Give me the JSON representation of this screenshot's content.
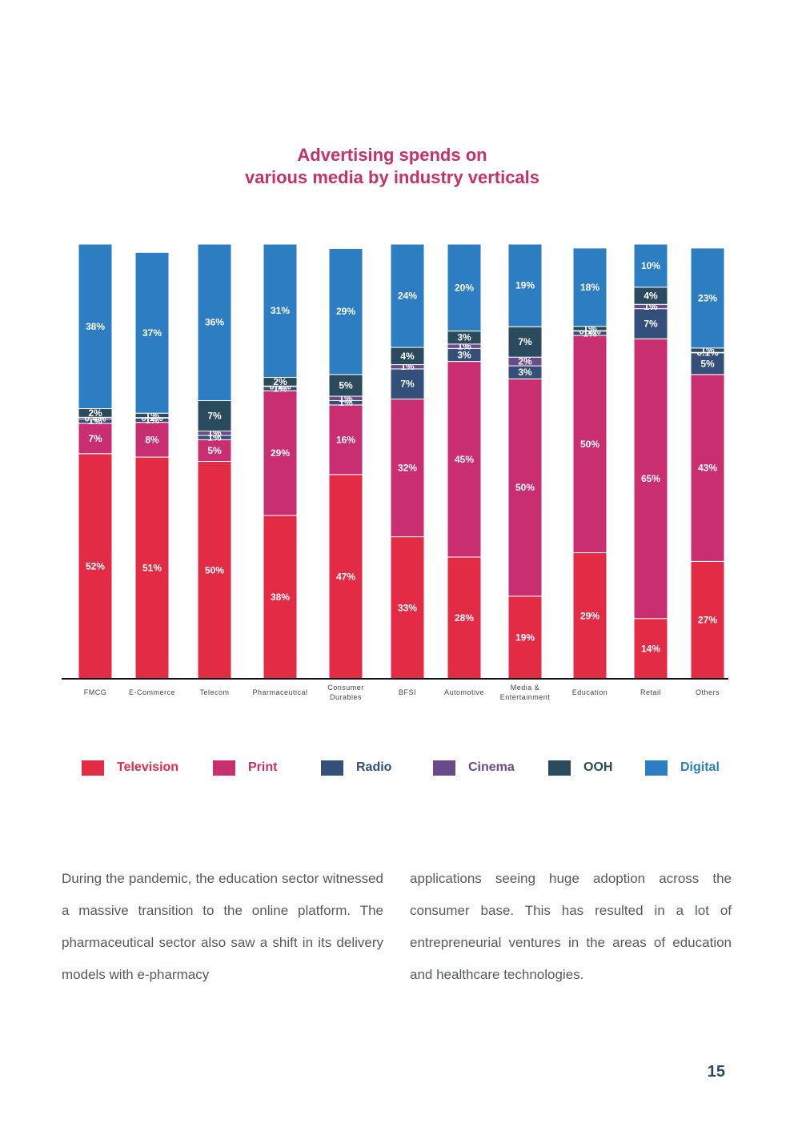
{
  "title": {
    "line1": "Advertising spends on",
    "line2": "various media by industry verticals"
  },
  "chart_data": {
    "type": "bar",
    "stacked": true,
    "title": "Advertising spends on various media by industry verticals",
    "categories": [
      [
        "FMCG"
      ],
      [
        "E-Commerce"
      ],
      [
        "Telecom"
      ],
      [
        "Pharmaceutical"
      ],
      [
        "Consumer",
        "Durables"
      ],
      [
        "BFSI"
      ],
      [
        "Automotive"
      ],
      [
        "Media &",
        "Entertainment"
      ],
      [
        "Education"
      ],
      [
        "Retail"
      ],
      [
        "Others"
      ]
    ],
    "series": [
      {
        "name": "Television",
        "color": "#e42b45",
        "values": [
          52,
          51,
          50,
          38,
          47,
          33,
          28,
          19,
          29,
          14,
          27
        ],
        "labels": [
          "52%",
          "51%",
          "50%",
          "38%",
          "47%",
          "33%",
          "28%",
          "19%",
          "29%",
          "14%",
          "27%"
        ]
      },
      {
        "name": "Print",
        "color": "#c92f70",
        "values": [
          7,
          8,
          5,
          29,
          16,
          32,
          45,
          50,
          50,
          65,
          43
        ],
        "labels": [
          "7%",
          "8%",
          "5%",
          "29%",
          "16%",
          "32%",
          "45%",
          "50%",
          "50%",
          "65%",
          "43%"
        ]
      },
      {
        "name": "Radio",
        "color": "#34507a",
        "values": [
          1,
          1,
          1,
          1,
          1,
          7,
          3,
          3,
          1,
          7,
          5
        ],
        "labels": [
          "1%",
          "1%",
          "1%",
          "1%",
          "1%",
          "7%",
          "3%",
          "3%",
          "1%",
          "7%",
          "5%"
        ]
      },
      {
        "name": "Cinema",
        "color": "#6b4a8b",
        "values": [
          0.4,
          0.1,
          1,
          0.1,
          1,
          1,
          1,
          2,
          0.1,
          1,
          0.1
        ],
        "labels": [
          "0.4%",
          "0.1%",
          "1%",
          "0.1%",
          "1%",
          "1%",
          "1%",
          "2%",
          "0.1%",
          "1%",
          "0.1%"
        ]
      },
      {
        "name": "OOH",
        "color": "#2a4a5e",
        "values": [
          2,
          1,
          7,
          2,
          5,
          4,
          3,
          7,
          1,
          4,
          1
        ],
        "labels": [
          "2%",
          "1%",
          "7%",
          "2%",
          "5%",
          "4%",
          "3%",
          "7%",
          "1%",
          "4%",
          "1%"
        ]
      },
      {
        "name": "Digital",
        "color": "#2c7dc2",
        "values": [
          38,
          37,
          36,
          31,
          29,
          24,
          20,
          19,
          18,
          10,
          23
        ],
        "labels": [
          "38%",
          "37%",
          "36%",
          "31%",
          "29%",
          "24%",
          "20%",
          "19%",
          "18%",
          "10%",
          "23%"
        ]
      }
    ],
    "xlabel": "",
    "ylabel": "",
    "ylim": [
      0,
      100
    ],
    "unit": "%",
    "legend": "bottom"
  },
  "legend": [
    {
      "label": "Television",
      "color": "#e42b45"
    },
    {
      "label": "Print",
      "color": "#c92f70"
    },
    {
      "label": "Radio",
      "color": "#34507a"
    },
    {
      "label": "Cinema",
      "color": "#6b4a8b"
    },
    {
      "label": "OOH",
      "color": "#2a4a5e"
    },
    {
      "label": "Digital",
      "color": "#2c7dc2"
    }
  ],
  "body": {
    "col1": "During the pandemic, the education sector witnessed a massive transition to the online platform. The pharmaceutical sector also saw a shift in its delivery models with e-pharmacy",
    "col2": "applications seeing huge adoption across the consumer base. This has resulted in a lot of entrepreneurial ventures in the areas of education and healthcare technologies."
  },
  "page_number": "15"
}
